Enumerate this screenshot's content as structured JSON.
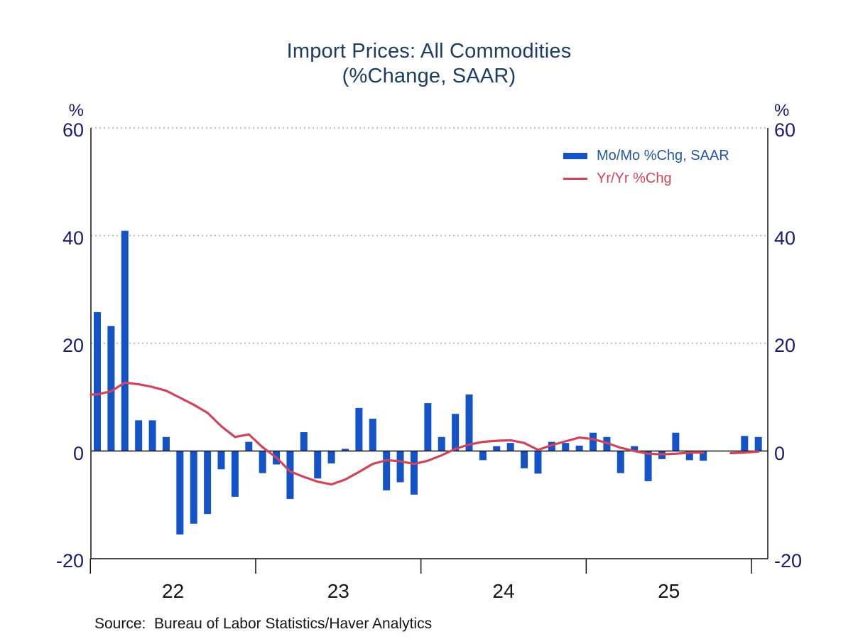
{
  "title": {
    "line1": "Import Prices: All Commodities",
    "line2": "(%Change, SAAR)"
  },
  "legend": [
    {
      "label": "Mo/Mo %Chg, SAAR",
      "type": "bar"
    },
    {
      "label": "Yr/Yr %Chg",
      "type": "line"
    }
  ],
  "source": "Source:  Bureau of Labor Statistics/Haver Analytics",
  "colors": {
    "bar": "#1452c8",
    "line": "#d04459",
    "navy_axis_text": "#1a1a7a",
    "title_text": "#1d3e62",
    "legend_blue_text": "#2257a8",
    "grid_dotted": "#a3abc9",
    "axis_black": "#111111",
    "ink_black": "#141414"
  },
  "chart_data": {
    "type": "bar+line",
    "title": "Import Prices: All Commodities (%Change, SAAR)",
    "ylabel": "%",
    "ylim": [
      -20,
      60
    ],
    "yticks": [
      60,
      40,
      20,
      0,
      -20
    ],
    "gridlines_dotted_at": [
      60,
      40,
      20
    ],
    "zero_line": true,
    "legend_position": "top-right",
    "x_tick_labels": [
      "22",
      "23",
      "24",
      "25"
    ],
    "x_unit": "month",
    "months": [
      "2022-01",
      "2022-02",
      "2022-03",
      "2022-04",
      "2022-05",
      "2022-06",
      "2022-07",
      "2022-08",
      "2022-09",
      "2022-10",
      "2022-11",
      "2022-12",
      "2023-01",
      "2023-02",
      "2023-03",
      "2023-04",
      "2023-05",
      "2023-06",
      "2023-07",
      "2023-08",
      "2023-09",
      "2023-10",
      "2023-11",
      "2023-12",
      "2024-01",
      "2024-02",
      "2024-03",
      "2024-04",
      "2024-05",
      "2024-06",
      "2024-07",
      "2024-08",
      "2024-09",
      "2024-10",
      "2024-11",
      "2024-12",
      "2025-01",
      "2025-02",
      "2025-03",
      "2025-04",
      "2025-05",
      "2025-06",
      "2025-07",
      "2025-08",
      "2025-09",
      "2025-10",
      "2025-11",
      "2025-12",
      "2026-01"
    ],
    "series": [
      {
        "name": "Mo/Mo %Chg, SAAR",
        "type": "bar",
        "values": [
          25.8,
          23.2,
          40.9,
          5.7,
          5.7,
          2.6,
          -15.5,
          -13.5,
          -11.7,
          -3.4,
          -8.5,
          1.7,
          -4.1,
          -2.5,
          -8.9,
          3.5,
          -5.1,
          -2.3,
          0.4,
          8.0,
          6.0,
          -7.3,
          -5.8,
          -8.1,
          8.9,
          2.6,
          6.9,
          10.5,
          -1.7,
          0.9,
          1.5,
          -3.2,
          -4.2,
          1.7,
          1.5,
          1.0,
          3.4,
          2.6,
          -4.1,
          0.9,
          -5.6,
          -1.5,
          3.4,
          -1.7,
          -1.8,
          null,
          null,
          2.8,
          2.6
        ]
      },
      {
        "name": "Yr/Yr %Chg",
        "type": "line",
        "values": [
          10.5,
          11.1,
          12.7,
          12.4,
          11.9,
          11.2,
          9.9,
          8.6,
          7.1,
          4.6,
          2.6,
          3.1,
          0.7,
          -1.2,
          -3.8,
          -4.8,
          -5.7,
          -6.2,
          -5.3,
          -3.9,
          -2.4,
          -1.7,
          -1.9,
          -2.4,
          -1.8,
          -0.8,
          0.4,
          1.2,
          1.7,
          1.9,
          2.0,
          1.5,
          0.2,
          1.1,
          1.8,
          2.5,
          2.2,
          1.5,
          0.6,
          0.0,
          -0.5,
          -0.6,
          -0.5,
          -0.3,
          -0.3,
          null,
          -0.4,
          -0.3,
          -0.1
        ]
      }
    ],
    "line_clipped_at_left_edge": true
  }
}
